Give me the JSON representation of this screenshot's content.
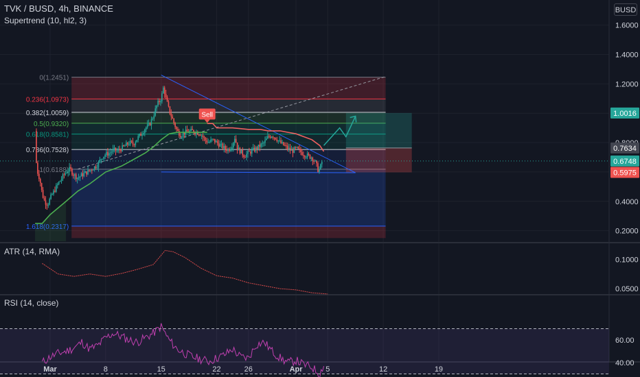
{
  "header": {
    "title": "TVK / BUSD, 4h, BINANCE",
    "indicator": "Supertrend (10, hl2, 3)",
    "currency": "BUSD"
  },
  "panes": {
    "atr_label": "ATR (14, RMA)",
    "rsi_label": "RSI (14, close)"
  },
  "colors": {
    "background": "#131722",
    "grid": "#1e222d",
    "candle_up": "#26a69a",
    "candle_down": "#ef5350",
    "supertrend_up": "#4caf50",
    "supertrend_down": "#f06060",
    "fib_blue": "#2962ff",
    "atr": "#d84a4a",
    "rsi": "#c040b0",
    "rsi_band": "#4a2a6a"
  },
  "chart_data": [
    {
      "type": "candlestick",
      "pane": "price",
      "x_axis": {
        "ticks": [
          "Mar",
          "8",
          "15",
          "22",
          "26",
          "Apr",
          "5",
          "12",
          "19"
        ],
        "tick_positions": [
          1.0,
          8.0,
          15.0,
          22.0,
          26.0,
          32.0,
          36.0,
          43.0,
          50.0
        ]
      },
      "y_axis": {
        "ticks": [
          0.2,
          0.4,
          0.6,
          0.8,
          1.0,
          1.2,
          1.4,
          1.6
        ],
        "tick_labels": [
          "0.2000",
          "0.4000",
          "0.6000",
          "0.8000",
          "1.0000",
          "1.2000",
          "1.4000",
          "1.6000"
        ],
        "ylim": [
          0.15,
          1.66
        ]
      },
      "price_curve": [
        [
          -0.9,
          0.88
        ],
        [
          -0.7,
          0.62
        ],
        [
          -0.3,
          0.55
        ],
        [
          0.0,
          0.45
        ],
        [
          0.3,
          0.4
        ],
        [
          0.7,
          0.38
        ],
        [
          1.0,
          0.42
        ],
        [
          1.5,
          0.47
        ],
        [
          2.0,
          0.52
        ],
        [
          2.5,
          0.56
        ],
        [
          3.0,
          0.6
        ],
        [
          3.5,
          0.62
        ],
        [
          4.0,
          0.58
        ],
        [
          4.5,
          0.56
        ],
        [
          5.0,
          0.58
        ],
        [
          6.0,
          0.61
        ],
        [
          6.5,
          0.63
        ],
        [
          7.0,
          0.65
        ],
        [
          7.5,
          0.7
        ],
        [
          8.0,
          0.72
        ],
        [
          8.5,
          0.73
        ],
        [
          9.0,
          0.75
        ],
        [
          9.5,
          0.74
        ],
        [
          10.0,
          0.76
        ],
        [
          10.5,
          0.78
        ],
        [
          11.0,
          0.8
        ],
        [
          11.5,
          0.79
        ],
        [
          12.0,
          0.83
        ],
        [
          12.5,
          0.86
        ],
        [
          13.0,
          0.9
        ],
        [
          13.5,
          0.92
        ],
        [
          14.0,
          0.98
        ],
        [
          14.5,
          1.06
        ],
        [
          15.0,
          1.1
        ],
        [
          15.3,
          1.18
        ],
        [
          15.6,
          1.1
        ],
        [
          16.0,
          1.02
        ],
        [
          16.5,
          0.95
        ],
        [
          17.0,
          0.88
        ],
        [
          17.5,
          0.85
        ],
        [
          18.0,
          0.87
        ],
        [
          19.0,
          0.88
        ],
        [
          20.0,
          0.86
        ],
        [
          20.5,
          0.82
        ],
        [
          21.0,
          0.8
        ],
        [
          21.5,
          0.82
        ],
        [
          22.0,
          0.8
        ],
        [
          22.5,
          0.78
        ],
        [
          23.0,
          0.76
        ],
        [
          23.5,
          0.75
        ],
        [
          24.0,
          0.79
        ],
        [
          24.3,
          0.84
        ],
        [
          24.6,
          0.76
        ],
        [
          25.0,
          0.74
        ],
        [
          25.5,
          0.71
        ],
        [
          26.0,
          0.73
        ],
        [
          27.0,
          0.76
        ],
        [
          27.5,
          0.78
        ],
        [
          28.0,
          0.8
        ],
        [
          28.5,
          0.84
        ],
        [
          29.0,
          0.85
        ],
        [
          29.5,
          0.83
        ],
        [
          30.0,
          0.8
        ],
        [
          30.5,
          0.78
        ],
        [
          31.0,
          0.76
        ],
        [
          31.5,
          0.74
        ],
        [
          32.0,
          0.76
        ],
        [
          32.5,
          0.74
        ],
        [
          33.0,
          0.72
        ],
        [
          33.5,
          0.71
        ],
        [
          34.0,
          0.7
        ],
        [
          34.5,
          0.66
        ],
        [
          34.8,
          0.61
        ],
        [
          35.0,
          0.62
        ],
        [
          35.3,
          0.6748
        ]
      ],
      "supertrend_up": [
        [
          -0.9,
          0.25
        ],
        [
          0.0,
          0.25
        ],
        [
          1.0,
          0.31
        ],
        [
          3.0,
          0.4
        ],
        [
          4.5,
          0.47
        ],
        [
          6.0,
          0.52
        ],
        [
          7.0,
          0.56
        ],
        [
          8.0,
          0.6
        ],
        [
          9.0,
          0.62
        ],
        [
          10.0,
          0.64
        ],
        [
          11.0,
          0.67
        ],
        [
          12.0,
          0.7
        ],
        [
          13.0,
          0.73
        ],
        [
          14.0,
          0.77
        ],
        [
          15.0,
          0.82
        ],
        [
          15.5,
          0.84
        ],
        [
          16.0,
          0.86
        ],
        [
          17.0,
          0.87
        ],
        [
          19.0,
          0.87
        ],
        [
          20.8,
          0.87
        ]
      ],
      "supertrend_down": [
        [
          20.8,
          0.93
        ],
        [
          21.5,
          0.93
        ],
        [
          22.0,
          0.9
        ],
        [
          24.0,
          0.9
        ],
        [
          26.0,
          0.89
        ],
        [
          27.5,
          0.89
        ],
        [
          28.5,
          0.88
        ],
        [
          30.0,
          0.88
        ],
        [
          31.0,
          0.87
        ],
        [
          32.0,
          0.86
        ],
        [
          33.0,
          0.84
        ],
        [
          34.0,
          0.82
        ],
        [
          35.0,
          0.78
        ],
        [
          35.5,
          0.74
        ]
      ],
      "price_labels": [
        {
          "text": "1.0016",
          "value": 1.0016,
          "color": "#26a69a"
        },
        {
          "text": "0.7634",
          "value": 0.7634,
          "color": "#434651"
        },
        {
          "text": "0.6748",
          "value": 0.6748,
          "color": "#26a69a"
        },
        {
          "text": "0.5975",
          "value": 0.5975,
          "color": "#ef5350"
        }
      ],
      "fib_levels": [
        {
          "label": "0(1.2451)",
          "value": 1.2451,
          "color": "#787b86"
        },
        {
          "label": "0.236(1.0973)",
          "value": 1.0973,
          "color": "#f23645"
        },
        {
          "label": "0.382(1.0059)",
          "value": 1.0059,
          "color": "#d1d4dc"
        },
        {
          "label": "0.5(0.9320)",
          "value": 0.932,
          "color": "#4caf50"
        },
        {
          "label": "0.618(0.8581)",
          "value": 0.8581,
          "color": "#089981"
        },
        {
          "label": "0.786(0.7528)",
          "value": 0.7528,
          "color": "#d1d4dc"
        },
        {
          "label": "1(0.6188)",
          "value": 0.6188,
          "color": "#787b86"
        },
        {
          "label": "1.618(0.2317)",
          "value": 0.2317,
          "color": "#2962ff"
        }
      ],
      "fib_range": {
        "x_start": 3.7,
        "x_end": 43.3,
        "low": 0.15,
        "high": 1.2451
      },
      "trendlines": [
        {
          "from": [
            15.0,
            1.26
          ],
          "to": [
            39.5,
            0.595
          ],
          "color": "#2962ff",
          "style": "solid"
        },
        {
          "from": [
            15.0,
            0.6
          ],
          "to": [
            39.5,
            0.595
          ],
          "color": "#2962ff",
          "style": "solid"
        },
        {
          "from": [
            4.5,
            0.62
          ],
          "to": [
            43.3,
            1.25
          ],
          "color": "#9598a1",
          "style": "dashed"
        }
      ],
      "sell_signal": {
        "text": "Sell",
        "x": 20.8,
        "value": 0.99
      },
      "position_tool": {
        "x_start": 38.3,
        "x_end": 46.6,
        "entry": 0.7634,
        "target": 1.0016,
        "stop": 0.5975
      },
      "projection_path": [
        [
          35.5,
          0.78
        ],
        [
          37.5,
          0.9
        ],
        [
          38.3,
          0.84
        ],
        [
          39.5,
          0.98
        ]
      ]
    },
    {
      "type": "line",
      "pane": "atr",
      "name": "ATR (14, RMA)",
      "y_axis": {
        "ticks": [
          0.05,
          0.1
        ],
        "tick_labels": [
          "0.0500",
          "0.1000"
        ],
        "ylim": [
          0.03,
          0.13
        ]
      },
      "points": [
        [
          0.0,
          0.093
        ],
        [
          2.0,
          0.075
        ],
        [
          4.0,
          0.071
        ],
        [
          6.0,
          0.075
        ],
        [
          8.0,
          0.071
        ],
        [
          10.0,
          0.076
        ],
        [
          12.0,
          0.083
        ],
        [
          14.0,
          0.091
        ],
        [
          15.5,
          0.115
        ],
        [
          16.5,
          0.113
        ],
        [
          18.0,
          0.103
        ],
        [
          20.0,
          0.085
        ],
        [
          22.0,
          0.072
        ],
        [
          24.0,
          0.068
        ],
        [
          26.0,
          0.06
        ],
        [
          28.0,
          0.055
        ],
        [
          30.0,
          0.05
        ],
        [
          32.0,
          0.048
        ],
        [
          34.0,
          0.043
        ],
        [
          36.0,
          0.041
        ]
      ]
    },
    {
      "type": "line",
      "pane": "rsi",
      "name": "RSI (14, close)",
      "y_axis": {
        "ticks": [
          40,
          60
        ],
        "tick_labels": [
          "40.00",
          "60.00"
        ],
        "ylim": [
          25,
          75
        ]
      },
      "band": [
        30,
        70
      ],
      "points": [
        [
          0.0,
          40
        ],
        [
          1.0,
          45
        ],
        [
          2.0,
          48
        ],
        [
          3.0,
          50
        ],
        [
          4.0,
          53
        ],
        [
          5.0,
          58
        ],
        [
          6.0,
          52
        ],
        [
          7.0,
          55
        ],
        [
          8.0,
          62
        ],
        [
          9.0,
          66
        ],
        [
          10.0,
          63
        ],
        [
          11.0,
          60
        ],
        [
          12.0,
          58
        ],
        [
          13.0,
          62
        ],
        [
          14.0,
          66
        ],
        [
          15.0,
          72
        ],
        [
          16.0,
          60
        ],
        [
          17.0,
          52
        ],
        [
          18.0,
          48
        ],
        [
          19.0,
          45
        ],
        [
          20.0,
          43
        ],
        [
          21.0,
          41
        ],
        [
          22.0,
          44
        ],
        [
          23.0,
          47
        ],
        [
          24.0,
          52
        ],
        [
          25.0,
          45
        ],
        [
          26.0,
          44
        ],
        [
          27.0,
          56
        ],
        [
          28.0,
          58
        ],
        [
          29.0,
          50
        ],
        [
          30.0,
          44
        ],
        [
          31.0,
          40
        ],
        [
          32.0,
          42
        ],
        [
          33.0,
          38
        ],
        [
          34.0,
          36
        ],
        [
          35.0,
          30
        ],
        [
          35.5,
          38
        ]
      ]
    }
  ]
}
